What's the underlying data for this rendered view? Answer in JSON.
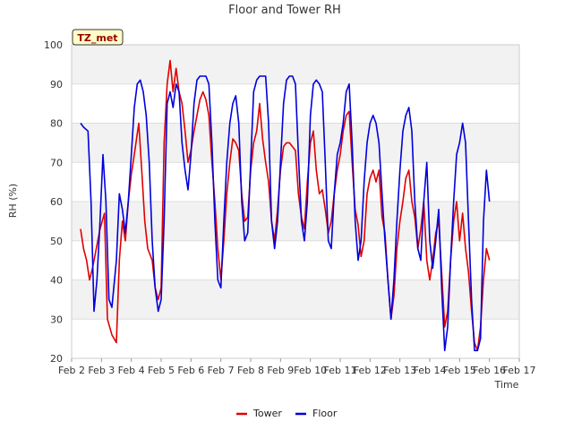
{
  "chart_data": {
    "type": "line",
    "title": "Floor and Tower RH",
    "xlabel": "Time",
    "ylabel": "RH (%)",
    "ylim": [
      20,
      100
    ],
    "xlim": [
      2,
      17
    ],
    "x_ticks": [
      2,
      3,
      4,
      5,
      6,
      7,
      8,
      9,
      10,
      11,
      12,
      13,
      14,
      15,
      16,
      17
    ],
    "x_tick_labels": [
      "Feb 2",
      "Feb 3",
      "Feb 4",
      "Feb 5",
      "Feb 6",
      "Feb 7",
      "Feb 8",
      "Feb 9",
      "Feb 10",
      "Feb 11",
      "Feb 12",
      "Feb 13",
      "Feb 14",
      "Feb 15",
      "Feb 16",
      "Feb 17"
    ],
    "y_ticks": [
      20,
      30,
      40,
      50,
      60,
      70,
      80,
      90,
      100
    ],
    "badge": "TZ_met",
    "legend_position": "bottom-center",
    "grid": true,
    "series": [
      {
        "name": "Tower",
        "color": "#e00000",
        "points": [
          [
            2.3,
            53
          ],
          [
            2.4,
            48
          ],
          [
            2.5,
            45
          ],
          [
            2.6,
            40
          ],
          [
            2.7,
            43
          ],
          [
            2.8,
            47
          ],
          [
            2.95,
            53
          ],
          [
            3.1,
            57
          ],
          [
            3.2,
            30
          ],
          [
            3.35,
            26
          ],
          [
            3.5,
            24
          ],
          [
            3.6,
            45
          ],
          [
            3.7,
            55
          ],
          [
            3.8,
            50
          ],
          [
            3.9,
            60
          ],
          [
            4.0,
            67
          ],
          [
            4.1,
            72
          ],
          [
            4.25,
            80
          ],
          [
            4.35,
            68
          ],
          [
            4.45,
            55
          ],
          [
            4.55,
            48
          ],
          [
            4.7,
            45
          ],
          [
            4.8,
            38
          ],
          [
            4.9,
            35
          ],
          [
            5.0,
            38
          ],
          [
            5.1,
            75
          ],
          [
            5.2,
            90
          ],
          [
            5.3,
            96
          ],
          [
            5.4,
            88
          ],
          [
            5.5,
            94
          ],
          [
            5.6,
            88
          ],
          [
            5.7,
            85
          ],
          [
            5.8,
            78
          ],
          [
            5.9,
            70
          ],
          [
            6.0,
            73
          ],
          [
            6.1,
            78
          ],
          [
            6.2,
            82
          ],
          [
            6.3,
            86
          ],
          [
            6.4,
            88
          ],
          [
            6.5,
            86
          ],
          [
            6.6,
            82
          ],
          [
            6.7,
            70
          ],
          [
            6.8,
            60
          ],
          [
            6.9,
            48
          ],
          [
            7.0,
            40
          ],
          [
            7.1,
            50
          ],
          [
            7.2,
            62
          ],
          [
            7.3,
            70
          ],
          [
            7.4,
            76
          ],
          [
            7.5,
            75
          ],
          [
            7.6,
            73
          ],
          [
            7.7,
            62
          ],
          [
            7.8,
            55
          ],
          [
            7.9,
            56
          ],
          [
            8.0,
            68
          ],
          [
            8.1,
            75
          ],
          [
            8.2,
            78
          ],
          [
            8.3,
            85
          ],
          [
            8.4,
            76
          ],
          [
            8.5,
            70
          ],
          [
            8.6,
            65
          ],
          [
            8.7,
            55
          ],
          [
            8.8,
            50
          ],
          [
            8.9,
            58
          ],
          [
            9.0,
            68
          ],
          [
            9.1,
            74
          ],
          [
            9.2,
            75
          ],
          [
            9.3,
            75
          ],
          [
            9.4,
            74
          ],
          [
            9.5,
            73
          ],
          [
            9.6,
            62
          ],
          [
            9.7,
            56
          ],
          [
            9.8,
            53
          ],
          [
            9.9,
            65
          ],
          [
            10.0,
            75
          ],
          [
            10.1,
            78
          ],
          [
            10.2,
            68
          ],
          [
            10.3,
            62
          ],
          [
            10.4,
            63
          ],
          [
            10.5,
            58
          ],
          [
            10.6,
            52
          ],
          [
            10.7,
            55
          ],
          [
            10.8,
            62
          ],
          [
            10.9,
            68
          ],
          [
            11.0,
            72
          ],
          [
            11.1,
            78
          ],
          [
            11.2,
            82
          ],
          [
            11.3,
            83
          ],
          [
            11.4,
            70
          ],
          [
            11.5,
            58
          ],
          [
            11.6,
            54
          ],
          [
            11.7,
            46
          ],
          [
            11.8,
            50
          ],
          [
            11.9,
            62
          ],
          [
            12.0,
            66
          ],
          [
            12.1,
            68
          ],
          [
            12.2,
            65
          ],
          [
            12.3,
            68
          ],
          [
            12.4,
            56
          ],
          [
            12.5,
            52
          ],
          [
            12.6,
            40
          ],
          [
            12.7,
            30
          ],
          [
            12.8,
            36
          ],
          [
            12.9,
            48
          ],
          [
            13.0,
            55
          ],
          [
            13.1,
            60
          ],
          [
            13.2,
            66
          ],
          [
            13.3,
            68
          ],
          [
            13.4,
            60
          ],
          [
            13.5,
            56
          ],
          [
            13.6,
            48
          ],
          [
            13.7,
            53
          ],
          [
            13.8,
            60
          ],
          [
            13.9,
            45
          ],
          [
            14.0,
            40
          ],
          [
            14.1,
            45
          ],
          [
            14.2,
            52
          ],
          [
            14.3,
            55
          ],
          [
            14.4,
            42
          ],
          [
            14.5,
            28
          ],
          [
            14.6,
            32
          ],
          [
            14.7,
            45
          ],
          [
            14.8,
            55
          ],
          [
            14.9,
            60
          ],
          [
            15.0,
            50
          ],
          [
            15.1,
            57
          ],
          [
            15.2,
            48
          ],
          [
            15.3,
            42
          ],
          [
            15.4,
            32
          ],
          [
            15.5,
            24
          ],
          [
            15.6,
            22
          ],
          [
            15.7,
            28
          ],
          [
            15.8,
            40
          ],
          [
            15.9,
            48
          ],
          [
            16.0,
            45
          ]
        ]
      },
      {
        "name": "Floor",
        "color": "#0000dd",
        "points": [
          [
            2.3,
            80
          ],
          [
            2.4,
            79
          ],
          [
            2.55,
            78
          ],
          [
            2.65,
            60
          ],
          [
            2.75,
            32
          ],
          [
            2.85,
            40
          ],
          [
            2.95,
            55
          ],
          [
            3.05,
            72
          ],
          [
            3.15,
            60
          ],
          [
            3.25,
            35
          ],
          [
            3.35,
            33
          ],
          [
            3.5,
            45
          ],
          [
            3.6,
            62
          ],
          [
            3.7,
            58
          ],
          [
            3.8,
            52
          ],
          [
            3.9,
            60
          ],
          [
            4.0,
            72
          ],
          [
            4.1,
            84
          ],
          [
            4.2,
            90
          ],
          [
            4.3,
            91
          ],
          [
            4.4,
            88
          ],
          [
            4.5,
            82
          ],
          [
            4.6,
            70
          ],
          [
            4.7,
            50
          ],
          [
            4.8,
            38
          ],
          [
            4.9,
            32
          ],
          [
            5.0,
            35
          ],
          [
            5.1,
            55
          ],
          [
            5.2,
            85
          ],
          [
            5.3,
            88
          ],
          [
            5.4,
            84
          ],
          [
            5.5,
            90
          ],
          [
            5.6,
            88
          ],
          [
            5.7,
            75
          ],
          [
            5.8,
            68
          ],
          [
            5.9,
            63
          ],
          [
            6.0,
            72
          ],
          [
            6.1,
            85
          ],
          [
            6.2,
            91
          ],
          [
            6.3,
            92
          ],
          [
            6.4,
            92
          ],
          [
            6.5,
            92
          ],
          [
            6.6,
            90
          ],
          [
            6.7,
            75
          ],
          [
            6.8,
            55
          ],
          [
            6.9,
            40
          ],
          [
            7.0,
            38
          ],
          [
            7.1,
            55
          ],
          [
            7.2,
            70
          ],
          [
            7.3,
            80
          ],
          [
            7.4,
            85
          ],
          [
            7.5,
            87
          ],
          [
            7.6,
            80
          ],
          [
            7.7,
            60
          ],
          [
            7.8,
            50
          ],
          [
            7.9,
            52
          ],
          [
            8.0,
            70
          ],
          [
            8.1,
            88
          ],
          [
            8.2,
            91
          ],
          [
            8.3,
            92
          ],
          [
            8.4,
            92
          ],
          [
            8.5,
            92
          ],
          [
            8.6,
            80
          ],
          [
            8.7,
            55
          ],
          [
            8.8,
            48
          ],
          [
            8.9,
            55
          ],
          [
            9.0,
            70
          ],
          [
            9.1,
            85
          ],
          [
            9.2,
            91
          ],
          [
            9.3,
            92
          ],
          [
            9.4,
            92
          ],
          [
            9.5,
            90
          ],
          [
            9.6,
            72
          ],
          [
            9.7,
            55
          ],
          [
            9.8,
            50
          ],
          [
            9.9,
            60
          ],
          [
            10.0,
            82
          ],
          [
            10.1,
            90
          ],
          [
            10.2,
            91
          ],
          [
            10.3,
            90
          ],
          [
            10.4,
            88
          ],
          [
            10.5,
            70
          ],
          [
            10.6,
            50
          ],
          [
            10.7,
            48
          ],
          [
            10.8,
            62
          ],
          [
            10.9,
            72
          ],
          [
            11.0,
            75
          ],
          [
            11.1,
            80
          ],
          [
            11.2,
            88
          ],
          [
            11.3,
            90
          ],
          [
            11.4,
            75
          ],
          [
            11.5,
            55
          ],
          [
            11.6,
            45
          ],
          [
            11.7,
            50
          ],
          [
            11.8,
            65
          ],
          [
            11.9,
            75
          ],
          [
            12.0,
            80
          ],
          [
            12.1,
            82
          ],
          [
            12.2,
            80
          ],
          [
            12.3,
            75
          ],
          [
            12.4,
            62
          ],
          [
            12.5,
            50
          ],
          [
            12.6,
            40
          ],
          [
            12.7,
            30
          ],
          [
            12.8,
            40
          ],
          [
            12.9,
            55
          ],
          [
            13.0,
            68
          ],
          [
            13.1,
            78
          ],
          [
            13.2,
            82
          ],
          [
            13.3,
            84
          ],
          [
            13.4,
            78
          ],
          [
            13.5,
            60
          ],
          [
            13.6,
            48
          ],
          [
            13.7,
            45
          ],
          [
            13.8,
            60
          ],
          [
            13.9,
            70
          ],
          [
            14.0,
            50
          ],
          [
            14.1,
            43
          ],
          [
            14.2,
            50
          ],
          [
            14.3,
            58
          ],
          [
            14.4,
            38
          ],
          [
            14.5,
            22
          ],
          [
            14.6,
            28
          ],
          [
            14.7,
            45
          ],
          [
            14.8,
            60
          ],
          [
            14.9,
            72
          ],
          [
            15.0,
            75
          ],
          [
            15.1,
            80
          ],
          [
            15.2,
            75
          ],
          [
            15.3,
            55
          ],
          [
            15.4,
            35
          ],
          [
            15.5,
            22
          ],
          [
            15.6,
            22
          ],
          [
            15.7,
            25
          ],
          [
            15.8,
            55
          ],
          [
            15.9,
            68
          ],
          [
            16.0,
            60
          ]
        ]
      }
    ]
  }
}
